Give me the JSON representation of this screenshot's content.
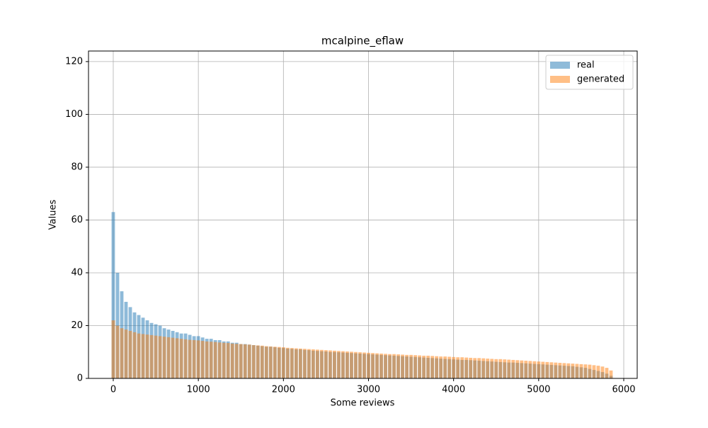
{
  "chart_data": {
    "type": "bar",
    "title": "mcalpine_eflaw",
    "xlabel": "Some reviews",
    "ylabel": "Values",
    "x": [
      0,
      50,
      100,
      150,
      200,
      250,
      300,
      350,
      400,
      450,
      500,
      550,
      600,
      650,
      700,
      750,
      800,
      850,
      900,
      950,
      1000,
      1050,
      1100,
      1150,
      1200,
      1250,
      1300,
      1350,
      1400,
      1450,
      1500,
      1550,
      1600,
      1650,
      1700,
      1750,
      1800,
      1850,
      1900,
      1950,
      2000,
      2050,
      2100,
      2150,
      2200,
      2250,
      2300,
      2350,
      2400,
      2450,
      2500,
      2550,
      2600,
      2650,
      2700,
      2750,
      2800,
      2850,
      2900,
      2950,
      3000,
      3050,
      3100,
      3150,
      3200,
      3250,
      3300,
      3350,
      3400,
      3450,
      3500,
      3550,
      3600,
      3650,
      3700,
      3750,
      3800,
      3850,
      3900,
      3950,
      4000,
      4050,
      4100,
      4150,
      4200,
      4250,
      4300,
      4350,
      4400,
      4450,
      4500,
      4550,
      4600,
      4650,
      4700,
      4750,
      4800,
      4850,
      4900,
      4950,
      5000,
      5050,
      5100,
      5150,
      5200,
      5250,
      5300,
      5350,
      5400,
      5450,
      5500,
      5550,
      5600,
      5650,
      5700,
      5750,
      5800,
      5850
    ],
    "series": [
      {
        "name": "real",
        "color": "#1f77b4",
        "values": [
          63,
          40,
          33,
          29,
          27,
          25,
          24,
          23,
          22,
          21,
          20.5,
          20,
          19,
          18.5,
          18,
          17.5,
          17,
          17,
          16.5,
          16,
          16,
          15.5,
          15,
          15,
          14.5,
          14.5,
          14,
          14,
          13.5,
          13.5,
          13,
          13,
          12.8,
          12.6,
          12.4,
          12.2,
          12,
          12,
          11.8,
          11.6,
          11.5,
          11.3,
          11.2,
          11,
          11,
          10.8,
          10.7,
          10.5,
          10.4,
          10.3,
          10.2,
          10,
          10,
          9.9,
          9.8,
          9.7,
          9.6,
          9.5,
          9.4,
          9.3,
          9.2,
          9.1,
          9,
          8.9,
          8.8,
          8.7,
          8.6,
          8.5,
          8.4,
          8.3,
          8.2,
          8.1,
          8,
          7.9,
          7.8,
          7.7,
          7.6,
          7.5,
          7.4,
          7.3,
          7.2,
          7.1,
          7,
          7,
          6.9,
          6.8,
          6.7,
          6.6,
          6.5,
          6.4,
          6.3,
          6.2,
          6.1,
          6,
          6,
          5.9,
          5.8,
          5.7,
          5.6,
          5.5,
          5.4,
          5.3,
          5.2,
          5.1,
          5,
          4.9,
          4.8,
          4.7,
          4.6,
          4.4,
          4.2,
          4,
          3.6,
          3.2,
          2.8,
          2.4,
          1.8,
          1
        ]
      },
      {
        "name": "generated",
        "color": "#ff7f0e",
        "values": [
          22,
          20,
          19,
          18.5,
          18,
          17.5,
          17,
          16.8,
          16.6,
          16.4,
          16.2,
          16,
          15.8,
          15.6,
          15.4,
          15.2,
          15,
          14.8,
          14.6,
          14.5,
          14.4,
          14.2,
          14,
          13.9,
          13.8,
          13.6,
          13.5,
          13.4,
          13.2,
          13.1,
          13,
          12.9,
          12.8,
          12.6,
          12.5,
          12.4,
          12.2,
          12.1,
          12,
          11.9,
          11.8,
          11.6,
          11.5,
          11.4,
          11.3,
          11.2,
          11.1,
          11,
          10.9,
          10.8,
          10.7,
          10.6,
          10.5,
          10.4,
          10.3,
          10.2,
          10.1,
          10,
          9.9,
          9.8,
          9.7,
          9.6,
          9.5,
          9.4,
          9.3,
          9.2,
          9.2,
          9.1,
          9,
          8.9,
          8.9,
          8.8,
          8.7,
          8.6,
          8.6,
          8.5,
          8.4,
          8.3,
          8.3,
          8.2,
          8.1,
          8,
          8,
          7.9,
          7.8,
          7.7,
          7.7,
          7.6,
          7.5,
          7.4,
          7.3,
          7.3,
          7.2,
          7.1,
          7,
          6.9,
          6.8,
          6.7,
          6.6,
          6.5,
          6.4,
          6.3,
          6.2,
          6.1,
          6,
          5.9,
          5.8,
          5.7,
          5.6,
          5.5,
          5.4,
          5.3,
          5.2,
          5,
          4.8,
          4.5,
          4,
          3
        ]
      }
    ],
    "xlim": [
      -291,
      6158
    ],
    "xticks": [
      0,
      1000,
      2000,
      3000,
      4000,
      5000,
      6000
    ],
    "ylim": [
      0,
      124
    ],
    "yticks": [
      0,
      20,
      40,
      60,
      80,
      100,
      120
    ],
    "grid": true,
    "legend": "upper right",
    "opacity": 0.5
  }
}
